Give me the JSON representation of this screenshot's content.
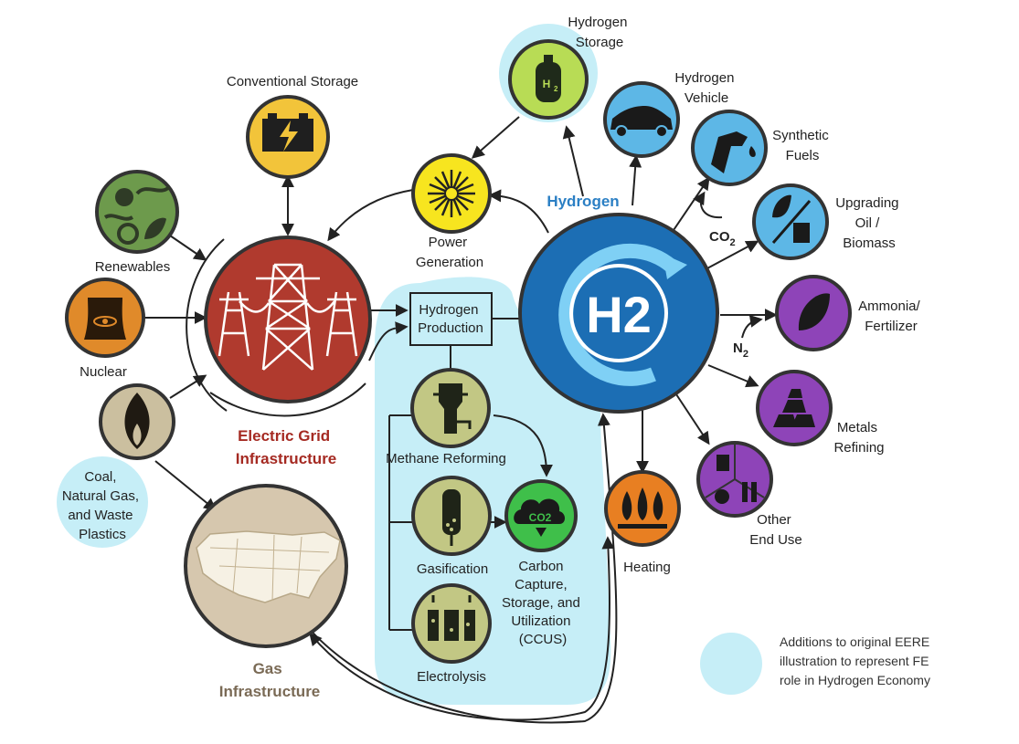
{
  "nodes": {
    "hydrogen_storage": [
      "Hydrogen",
      "Storage"
    ],
    "hydrogen_vehicle": [
      "Hydrogen",
      "Vehicle"
    ],
    "synthetic_fuels": [
      "Synthetic",
      "Fuels"
    ],
    "upgrading": [
      "Upgrading",
      "Oil /",
      "Biomass"
    ],
    "ammonia": [
      "Ammonia/",
      "Fertilizer"
    ],
    "metals": [
      "Metals",
      "Refining"
    ],
    "other_end_use": [
      "Other",
      "End Use"
    ],
    "heating": "Heating",
    "conventional_storage": "Conventional Storage",
    "power_generation": [
      "Power",
      "Generation"
    ],
    "renewables": "Renewables",
    "nuclear": "Nuclear",
    "coal_gas_plastics": [
      "Coal,",
      "Natural Gas,",
      "and Waste",
      "Plastics"
    ],
    "electric_grid": [
      "Electric Grid",
      "Infrastructure"
    ],
    "gas_infrastructure": [
      "Gas",
      "Infrastructure"
    ],
    "hydrogen_production": [
      "Hydrogen",
      "Production"
    ],
    "methane_reforming": "Methane Reforming",
    "gasification": "Gasification",
    "electrolysis": "Electrolysis",
    "ccus": [
      "Carbon",
      "Capture,",
      "Storage, and",
      "Utilization",
      "(CCUS)"
    ],
    "hydrogen_hub": "Hydrogen",
    "h2_symbol": "H2",
    "co2_symbol": "CO2"
  },
  "annotations": {
    "co2": "CO",
    "co2_sub": "2",
    "n2": "N",
    "n2_sub": "2",
    "h2_tank": "H",
    "h2_tank_sub": "2"
  },
  "legend": {
    "lines": [
      "Additions to original EERE",
      "illustration to represent FE",
      "role in Hydrogen Economy"
    ]
  },
  "colors": {
    "fe_additions": "#c6eef7",
    "hydrogen_blue": "#1c6eb4",
    "hydrogen_label": "#2b7fc4",
    "grid_red": "#b03a2e",
    "grid_label": "#a52a22",
    "gas_tan": "#d6c7ae",
    "gas_label": "#7a6a55",
    "storage_yellow": "#f2c43a",
    "power_yellow": "#f7e51f",
    "renewables_green": "#6d9a4c",
    "nuclear_orange": "#e08a2a",
    "production_olive": "#c2c784",
    "enduse_blue": "#5db7e6",
    "enduse_purple": "#8e44b8",
    "heating_orange": "#e87f22",
    "ccus_green": "#3fbf4a"
  }
}
